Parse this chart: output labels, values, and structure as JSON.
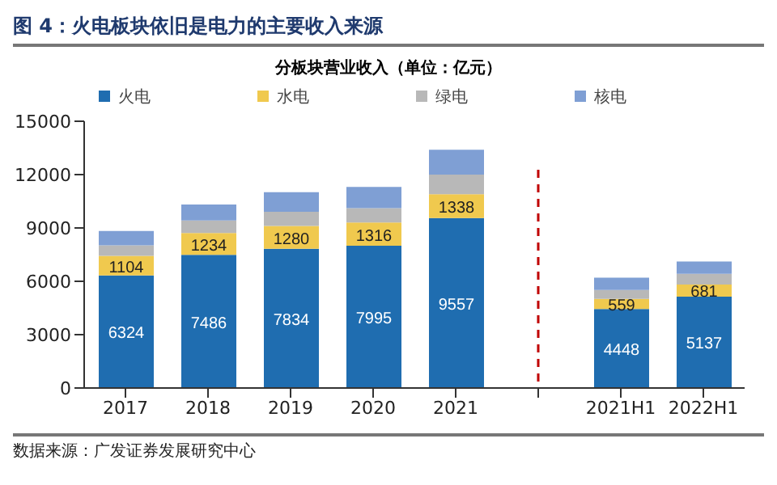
{
  "chart_data": {
    "type": "bar",
    "title": "图 4：火电板块依旧是电力的主要收入来源",
    "subtitle": "分板块营业收入（单位：亿元）",
    "stacked": true,
    "legend": "top",
    "categories": [
      "2017",
      "2018",
      "2019",
      "2020",
      "2021",
      null,
      "2021H1",
      "2022H1"
    ],
    "series": [
      {
        "name": "火电",
        "color": "#1f6db0",
        "values": [
          6324,
          7486,
          7834,
          7995,
          9557,
          null,
          4448,
          5137
        ],
        "value_labels": [
          "6324",
          "7486",
          "7834",
          "7995",
          "9557",
          null,
          "4448",
          "5137"
        ]
      },
      {
        "name": "水电",
        "color": "#f0c94e",
        "values": [
          1104,
          1234,
          1280,
          1316,
          1338,
          null,
          559,
          681
        ],
        "value_labels": [
          "1104",
          "1234",
          "1280",
          "1316",
          "1338",
          null,
          "559",
          "681"
        ]
      },
      {
        "name": "绿电",
        "color": "#b8b8b8",
        "values": [
          600,
          700,
          800,
          800,
          1100,
          null,
          500,
          600
        ]
      },
      {
        "name": "核电",
        "color": "#7f9fd4",
        "values": [
          800,
          900,
          1100,
          1200,
          1400,
          null,
          700,
          700
        ]
      }
    ],
    "ylim": [
      0,
      15000
    ],
    "yticks": [
      0,
      3000,
      6000,
      9000,
      12000,
      15000
    ],
    "grid": false,
    "annotations": [
      "数据来源：广发证券发展研究中心"
    ]
  }
}
